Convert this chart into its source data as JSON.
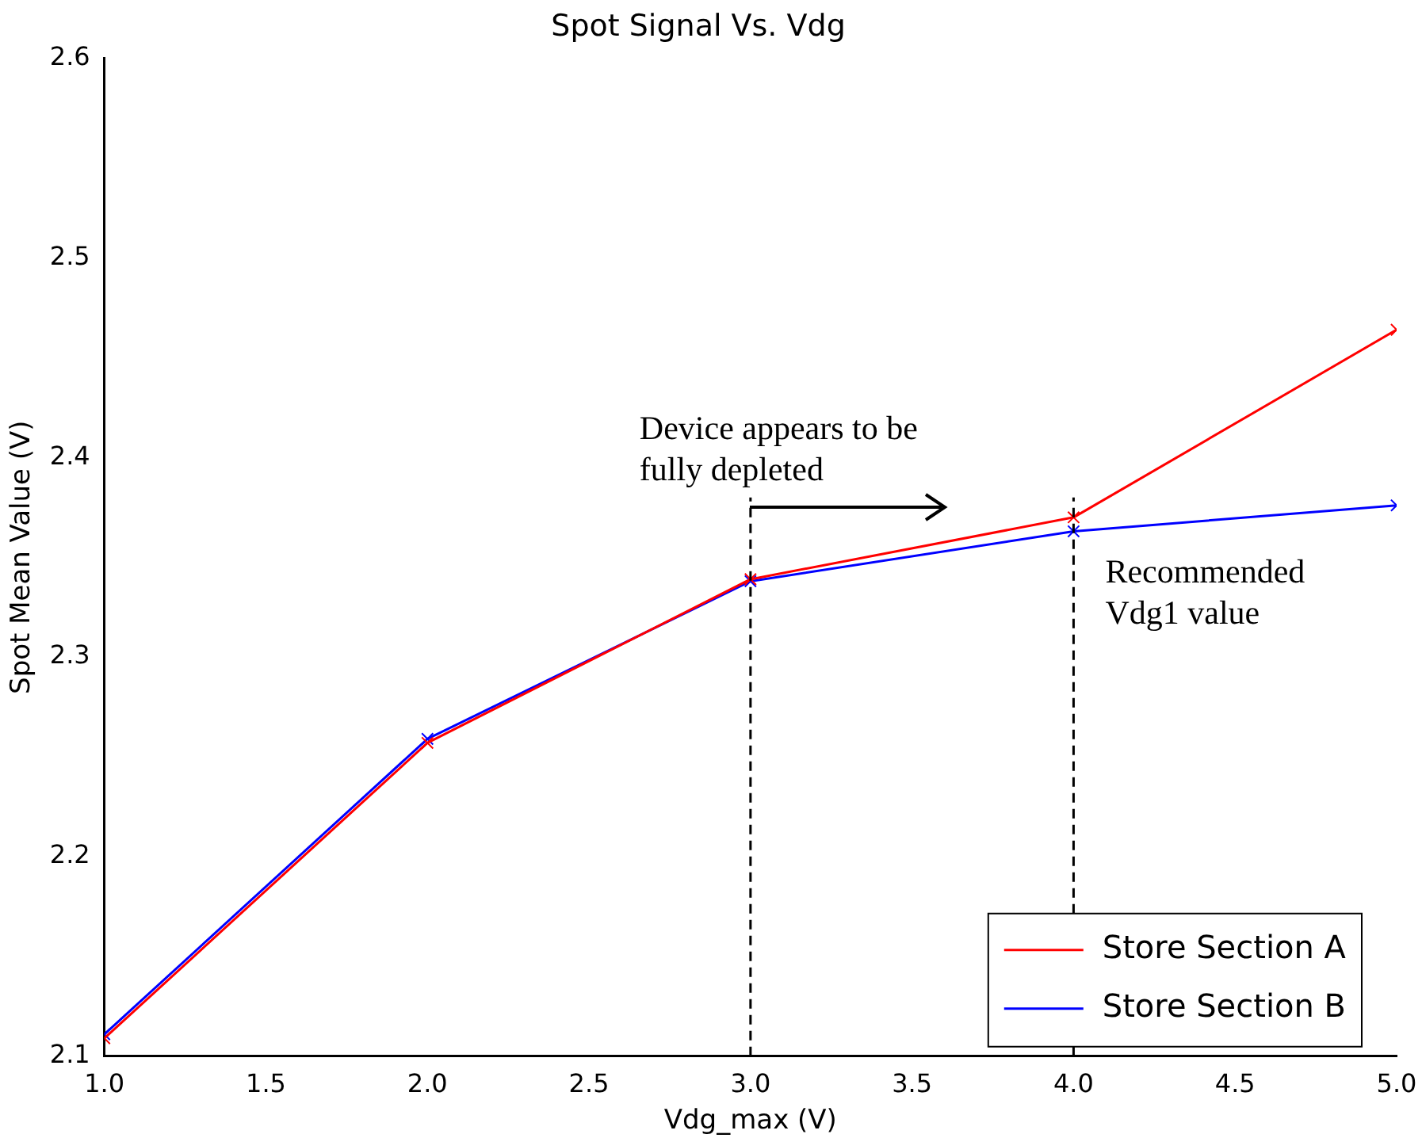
{
  "chart_data": {
    "type": "line",
    "title": "Spot Signal Vs. Vdg",
    "xlabel": "Vdg_max (V)",
    "ylabel": "Spot Mean Value (V)",
    "x": [
      1,
      2,
      3,
      4,
      5
    ],
    "series": [
      {
        "name": "Store Section A",
        "color": "#ff0000",
        "values": [
          2.109,
          2.257,
          2.339,
          2.37,
          2.464
        ]
      },
      {
        "name": "Store Section B",
        "color": "#0000ff",
        "values": [
          2.111,
          2.259,
          2.338,
          2.363,
          2.376
        ]
      }
    ],
    "xlim": [
      1,
      5
    ],
    "xticks": [
      {
        "value": 1,
        "label": "1.0"
      },
      {
        "value": 1.5,
        "label": "1.5"
      },
      {
        "value": 2,
        "label": "2.0"
      },
      {
        "value": 2.5,
        "label": "2.5"
      },
      {
        "value": 3,
        "label": "3.0"
      },
      {
        "value": 3.5,
        "label": "3.5"
      },
      {
        "value": 4,
        "label": "4.0"
      },
      {
        "value": 4.5,
        "label": "4.5"
      },
      {
        "value": 5,
        "label": "5.0"
      }
    ],
    "ylim": [
      2.1,
      2.6
    ],
    "yticks": [
      2.1,
      2.2,
      2.3,
      2.4,
      2.5,
      2.6
    ],
    "ref_lines": [
      {
        "axis": "x",
        "value": 3,
        "line_style": "dashed",
        "color": "#000000"
      },
      {
        "axis": "x",
        "value": 4,
        "line_style": "dashed",
        "color": "#000000"
      }
    ],
    "annotations": [
      "Device appears to be\nfully depleted",
      "Recommended\nVdg1 value"
    ],
    "marker": "cross",
    "line_style": "solid",
    "grid": false,
    "legend": "bottom right"
  }
}
